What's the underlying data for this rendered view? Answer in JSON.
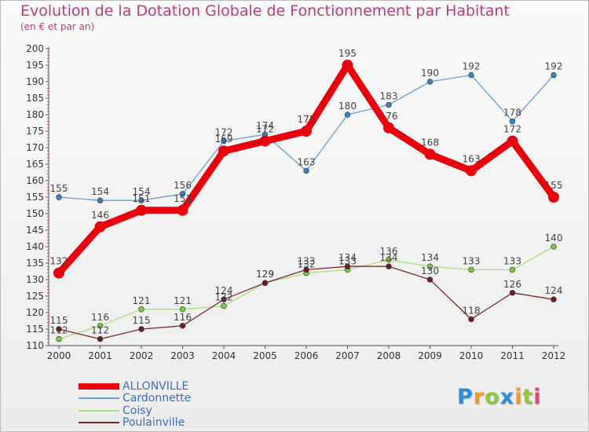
{
  "header": {
    "title": "Evolution de la Dotation Globale de Fonctionnement par Habitant",
    "subtitle": "(en € et par an)"
  },
  "logo": {
    "text": "Proxiti",
    "letters": [
      "P",
      "r",
      "o",
      "x",
      "i",
      "t",
      "i"
    ],
    "letter_colors": [
      "#2e8fd8",
      "#f29a1f",
      "#8dc63f",
      "#2e8fd8",
      "#f29a1f",
      "#8dc63f",
      "#e5427a"
    ]
  },
  "chart_data": {
    "type": "line",
    "title": "Evolution de la Dotation Globale de Fonctionnement par Habitant",
    "subtitle": "(en € et par an)",
    "xlabel": "",
    "ylabel": "",
    "x": [
      "2000",
      "2001",
      "2002",
      "2003",
      "2004",
      "2005",
      "2006",
      "2007",
      "2008",
      "2009",
      "2010",
      "2011",
      "2012"
    ],
    "ylim": [
      110,
      200
    ],
    "yticks": [
      110,
      115,
      120,
      125,
      130,
      135,
      140,
      145,
      150,
      155,
      160,
      165,
      170,
      175,
      180,
      185,
      190,
      195,
      200
    ],
    "grid": false,
    "legend_position": "bottom-left",
    "series": [
      {
        "name": "ALLONVILLE",
        "color": "#e8000b",
        "values": [
          132,
          146,
          151,
          151,
          169,
          172,
          175,
          195,
          176,
          168,
          163,
          172,
          155
        ],
        "labels": [
          "132",
          "146",
          "151",
          "151",
          "169",
          "172",
          "175",
          "195",
          "176",
          "168",
          "163",
          "172",
          "155"
        ]
      },
      {
        "name": "Cardonnette",
        "color": "#6a9fd4",
        "marker_color": "#3b82c8",
        "values": [
          155,
          154,
          154,
          156,
          172,
          174,
          163,
          180,
          183,
          190,
          192,
          178,
          192
        ],
        "labels": [
          "155",
          "154",
          "154",
          "156",
          "172",
          "174",
          "163",
          "180",
          "183",
          "190",
          "192",
          "178",
          "192"
        ]
      },
      {
        "name": "Coisy",
        "color": "#a6df7a",
        "marker_color": "#7ccc3e",
        "values": [
          112,
          116,
          121,
          121,
          122,
          129,
          132,
          133,
          136,
          134,
          133,
          133,
          140
        ],
        "labels": [
          "112",
          "116",
          "121",
          "121",
          "122",
          "129",
          "132",
          "133",
          "136",
          "134",
          "133",
          "133",
          "140"
        ]
      },
      {
        "name": "Poulainville",
        "color": "#7a2a2a",
        "marker_color": "#6b1f1f",
        "values": [
          115,
          112,
          115,
          116,
          124,
          129,
          133,
          134,
          134,
          130,
          118,
          126,
          124
        ],
        "labels": [
          "115",
          "112",
          "115",
          "116",
          "124",
          "129",
          "133",
          "134",
          "134",
          "130",
          "118",
          "126",
          "124"
        ]
      }
    ]
  }
}
